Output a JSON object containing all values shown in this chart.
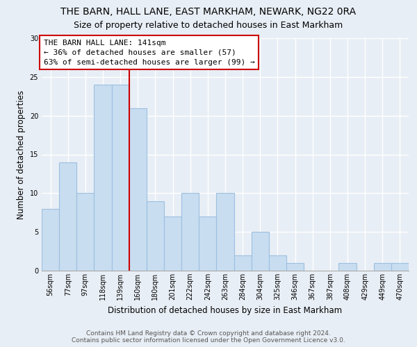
{
  "title": "THE BARN, HALL LANE, EAST MARKHAM, NEWARK, NG22 0RA",
  "subtitle": "Size of property relative to detached houses in East Markham",
  "xlabel": "Distribution of detached houses by size in East Markham",
  "ylabel": "Number of detached properties",
  "bar_color": "#c8ddf0",
  "bar_edge_color": "#9dbfe0",
  "categories": [
    "56sqm",
    "77sqm",
    "97sqm",
    "118sqm",
    "139sqm",
    "160sqm",
    "180sqm",
    "201sqm",
    "222sqm",
    "242sqm",
    "263sqm",
    "284sqm",
    "304sqm",
    "325sqm",
    "346sqm",
    "367sqm",
    "387sqm",
    "408sqm",
    "429sqm",
    "449sqm",
    "470sqm"
  ],
  "values": [
    8,
    14,
    10,
    24,
    24,
    21,
    9,
    7,
    10,
    7,
    10,
    2,
    5,
    2,
    1,
    0,
    0,
    1,
    0,
    1,
    1
  ],
  "ylim": [
    0,
    30
  ],
  "yticks": [
    0,
    5,
    10,
    15,
    20,
    25,
    30
  ],
  "property_line_index": 4,
  "property_line_label": "THE BARN HALL LANE: 141sqm",
  "annotation_line1": "← 36% of detached houses are smaller (57)",
  "annotation_line2": "63% of semi-detached houses are larger (99) →",
  "footer_line1": "Contains HM Land Registry data © Crown copyright and database right 2024.",
  "footer_line2": "Contains public sector information licensed under the Open Government Licence v3.0.",
  "background_color": "#e8eef5",
  "plot_bg_color": "#e8eef5",
  "grid_color": "#ffffff",
  "title_fontsize": 10,
  "subtitle_fontsize": 9,
  "axis_label_fontsize": 8.5,
  "tick_fontsize": 7,
  "footer_fontsize": 6.5,
  "annotation_fontsize": 8
}
